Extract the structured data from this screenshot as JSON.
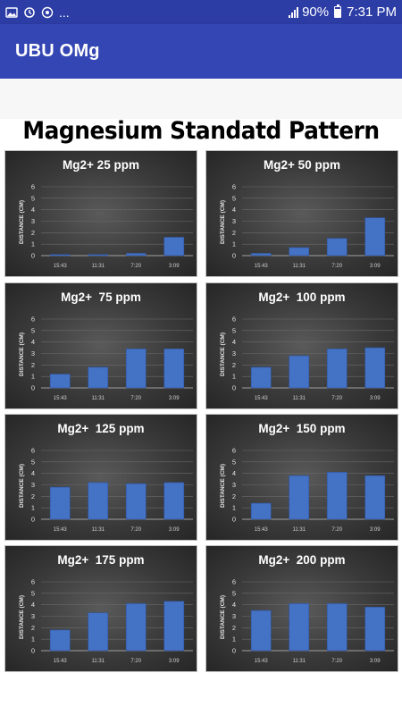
{
  "status_bar": {
    "left_icons": [
      "image-icon",
      "sync-icon",
      "clock-icon",
      "more-icon"
    ],
    "more_text": "...",
    "battery_percent": "90%",
    "time": "7:31 PM"
  },
  "app_bar": {
    "title": "UBU OMg"
  },
  "page": {
    "heading": "Magnesium Standatd Pattern"
  },
  "chart_data": [
    {
      "type": "bar",
      "title": "Mg2+ 25 ppm",
      "ylabel": "DISTANCE (CM)",
      "categories": [
        "15:43",
        "11:31",
        "7:20",
        "3:09"
      ],
      "values": [
        0.1,
        0.1,
        0.2,
        1.6
      ],
      "ylim": [
        0,
        6
      ],
      "yticks": [
        "0",
        "1",
        "2",
        "3",
        "4",
        "5",
        "6"
      ],
      "grid": true,
      "bar_color": "#4472c4"
    },
    {
      "type": "bar",
      "title": "Mg2+ 50 ppm",
      "ylabel": "DISTANCE (CM)",
      "categories": [
        "15:43",
        "11:31",
        "7:20",
        "3:09"
      ],
      "values": [
        0.2,
        0.7,
        1.5,
        3.3
      ],
      "ylim": [
        0,
        6
      ],
      "yticks": [
        "0",
        "1",
        "2",
        "3",
        "4",
        "5",
        "6"
      ],
      "grid": true,
      "bar_color": "#4472c4"
    },
    {
      "type": "bar",
      "title": "Mg2+  75 ppm",
      "ylabel": "DISTANCE (CM)",
      "categories": [
        "15:43",
        "11:31",
        "7:20",
        "3:09"
      ],
      "values": [
        1.2,
        1.8,
        3.4,
        3.4
      ],
      "ylim": [
        0,
        6
      ],
      "yticks": [
        "0",
        "1",
        "2",
        "3",
        "4",
        "5",
        "6"
      ],
      "grid": true,
      "bar_color": "#4472c4"
    },
    {
      "type": "bar",
      "title": "Mg2+  100 ppm",
      "ylabel": "DISTANCE (CM)",
      "categories": [
        "15:43",
        "11:31",
        "7:20",
        "3:09"
      ],
      "values": [
        1.8,
        2.8,
        3.4,
        3.5
      ],
      "ylim": [
        0,
        6
      ],
      "yticks": [
        "0",
        "1",
        "2",
        "3",
        "4",
        "5",
        "6"
      ],
      "grid": true,
      "bar_color": "#4472c4"
    },
    {
      "type": "bar",
      "title": "Mg2+  125 ppm",
      "ylabel": "DISTANCE (CM)",
      "categories": [
        "15:43",
        "11:31",
        "7:20",
        "3:09"
      ],
      "values": [
        2.8,
        3.2,
        3.1,
        3.2
      ],
      "ylim": [
        0,
        6
      ],
      "yticks": [
        "0",
        "1",
        "2",
        "3",
        "4",
        "5",
        "6"
      ],
      "grid": true,
      "bar_color": "#4472c4"
    },
    {
      "type": "bar",
      "title": "Mg2+  150 ppm",
      "ylabel": "DISTANCE (CM)",
      "categories": [
        "15:43",
        "11:31",
        "7:20",
        "3:09"
      ],
      "values": [
        1.4,
        3.8,
        4.1,
        3.8
      ],
      "ylim": [
        0,
        6
      ],
      "yticks": [
        "0",
        "1",
        "2",
        "3",
        "4",
        "5",
        "6"
      ],
      "grid": true,
      "bar_color": "#4472c4"
    },
    {
      "type": "bar",
      "title": "Mg2+  175 ppm",
      "ylabel": "DISTANCE (CM)",
      "categories": [
        "15:43",
        "11:31",
        "7:20",
        "3:09"
      ],
      "values": [
        1.8,
        3.3,
        4.1,
        4.3
      ],
      "ylim": [
        0,
        6
      ],
      "yticks": [
        "0",
        "1",
        "2",
        "3",
        "4",
        "5",
        "6"
      ],
      "grid": true,
      "bar_color": "#4472c4"
    },
    {
      "type": "bar",
      "title": "Mg2+  200 ppm",
      "ylabel": "DISTANCE (CM)",
      "categories": [
        "15:43",
        "11:31",
        "7:20",
        "3:09"
      ],
      "values": [
        3.5,
        4.1,
        4.1,
        3.8
      ],
      "ylim": [
        0,
        6
      ],
      "yticks": [
        "0",
        "1",
        "2",
        "3",
        "4",
        "5",
        "6"
      ],
      "grid": true,
      "bar_color": "#4472c4"
    }
  ]
}
